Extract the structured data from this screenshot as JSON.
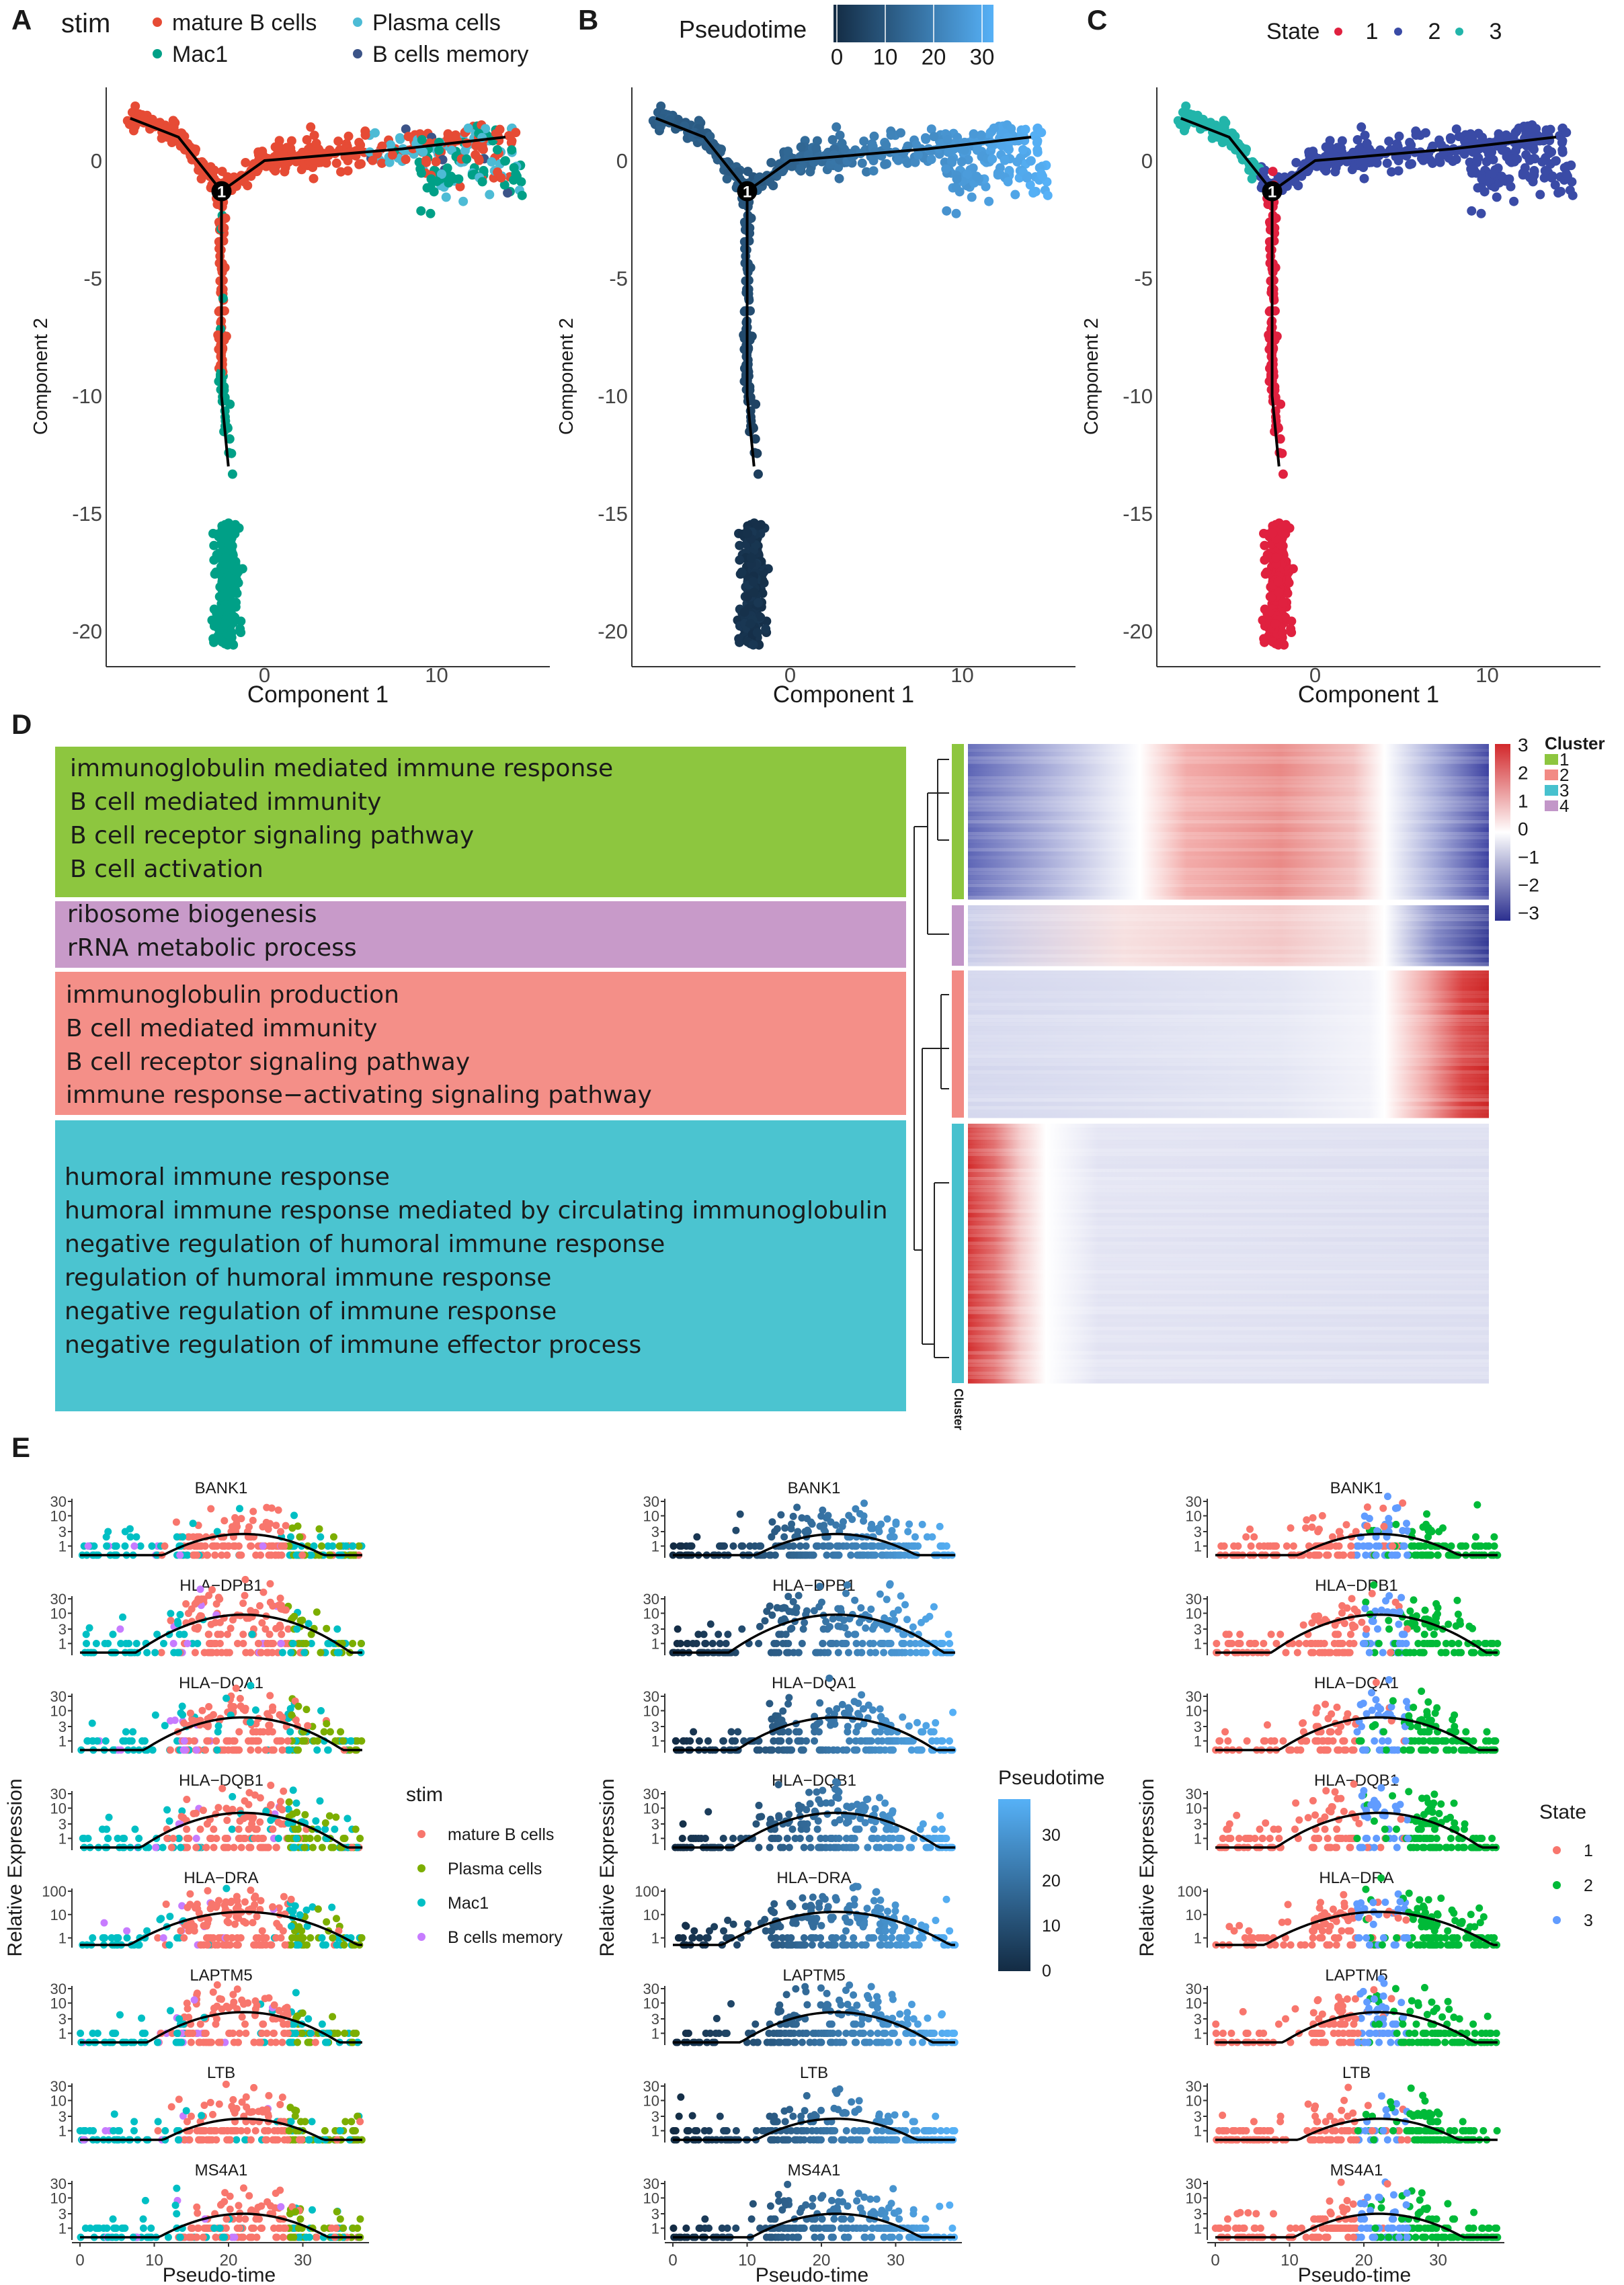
{
  "panel_labels": [
    "A",
    "B",
    "C",
    "D",
    "E"
  ],
  "chart_data": [
    {
      "id": "A",
      "type": "scatter",
      "xlabel": "Component 1",
      "ylabel": "Component 2",
      "xticks": [
        0,
        10
      ],
      "yticks": [
        0,
        -5,
        -10,
        -15,
        -20
      ],
      "xlim": [
        -9.2,
        16.5
      ],
      "ylim": [
        -21.5,
        3.1
      ],
      "branch_point_label": "1",
      "trajectory": [
        [
          -7.8,
          1.8
        ],
        [
          -5,
          1
        ],
        [
          -2.5,
          -1.3
        ],
        [
          0,
          0
        ],
        [
          8,
          0.5
        ],
        [
          14,
          1
        ]
      ],
      "stem": [
        [
          -2.5,
          -1.3
        ],
        [
          -2.5,
          -10
        ],
        [
          -2.1,
          -13
        ]
      ],
      "legend": {
        "title": "stim",
        "entries": [
          {
            "label": "mature B cells",
            "color": "#E64B35"
          },
          {
            "label": "Plasma cells",
            "color": "#4DBBD5"
          },
          {
            "label": "Mac1",
            "color": "#00A087"
          },
          {
            "label": "B cells memory",
            "color": "#3C5488"
          }
        ]
      }
    },
    {
      "id": "B",
      "type": "scatter",
      "xlabel": "Component 1",
      "ylabel": "Component 2",
      "xticks": [
        0,
        10
      ],
      "yticks": [
        0,
        -5,
        -10,
        -15,
        -20
      ],
      "xlim": [
        -9.2,
        16.5
      ],
      "ylim": [
        -21.5,
        3.1
      ],
      "branch_point_label": "1",
      "legend": {
        "title": "Pseudotime",
        "ticks": [
          "0",
          "10",
          "20",
          "30"
        ],
        "range": [
          0,
          32
        ],
        "low": "#132B43",
        "high": "#56B1F7"
      }
    },
    {
      "id": "C",
      "type": "scatter",
      "xlabel": "Component 1",
      "ylabel": "Component 2",
      "xticks": [
        0,
        10
      ],
      "yticks": [
        0,
        -5,
        -10,
        -15,
        -20
      ],
      "xlim": [
        -9.2,
        16.5
      ],
      "ylim": [
        -21.5,
        3.1
      ],
      "branch_point_label": "1",
      "legend": {
        "title": "State",
        "entries": [
          {
            "label": "1",
            "color": "#E0213F"
          },
          {
            "label": "2",
            "color": "#3A4BA6"
          },
          {
            "label": "3",
            "color": "#22B5AA"
          }
        ]
      }
    },
    {
      "id": "D",
      "type": "heatmap",
      "colorbar": {
        "ticks": [
          "3",
          "2",
          "1",
          "0",
          "−1",
          "−2",
          "−3"
        ],
        "range": [
          -3,
          3
        ],
        "low": "#2B2F8F",
        "mid": "#FFFFFF",
        "high": "#D2282B"
      },
      "cluster_legend": {
        "title": "Cluster",
        "entries": [
          {
            "label": "1",
            "color": "#8DC63F"
          },
          {
            "label": "2",
            "color": "#F28A84"
          },
          {
            "label": "3",
            "color": "#47C1CE"
          },
          {
            "label": "4",
            "color": "#C296C8"
          }
        ]
      },
      "cluster_bar_label": "Cluster",
      "modules": [
        {
          "cluster": "1",
          "color": "#8DC63F",
          "terms": [
            "immunoglobulin mediated immune response",
            "B cell mediated immunity",
            "B cell receptor signaling pathway",
            "B cell activation"
          ]
        },
        {
          "cluster": "4",
          "color": "#C89AC9",
          "terms": [
            "ribosome biogenesis",
            "rRNA metabolic process"
          ]
        },
        {
          "cluster": "2",
          "color": "#F48F88",
          "terms": [
            "immunoglobulin production",
            "B cell mediated immunity",
            "B cell receptor signaling pathway",
            "immune response−activating signaling pathway"
          ]
        },
        {
          "cluster": "3",
          "color": "#4BC4D0",
          "terms": [
            "humoral immune response",
            "humoral immune response mediated by circulating immunoglobulin",
            "negative regulation of humoral immune response",
            "regulation of humoral immune response",
            "negative regulation of immune response",
            "negative regulation of immune effector process"
          ]
        }
      ]
    },
    {
      "id": "E",
      "type": "scatter",
      "xlabel": "Pseudo-time",
      "ylabel": "Relative Expression",
      "xticks": [
        "0",
        "10",
        "20",
        "30"
      ],
      "xlim": [
        0,
        38
      ],
      "yticks": [
        "30",
        "10",
        "3",
        "1"
      ],
      "yticks_dra": [
        "100",
        "10",
        "1"
      ],
      "genes": [
        "BANK1",
        "HLA−DPB1",
        "HLA−DQA1",
        "HLA−DQB1",
        "HLA−DRA",
        "LAPTM5",
        "LTB",
        "MS4A1"
      ],
      "gene_peaks": [
        2.5,
        9,
        6,
        7,
        13,
        5,
        2.5,
        3
      ],
      "columns": [
        {
          "legend": {
            "title": "stim",
            "entries": [
              {
                "label": "mature B cells",
                "color": "#F8766D"
              },
              {
                "label": "Plasma cells",
                "color": "#7CAE00"
              },
              {
                "label": "Mac1",
                "color": "#00BFC4"
              },
              {
                "label": "B cells memory",
                "color": "#C77CFF"
              }
            ]
          }
        },
        {
          "legend": {
            "title": "Pseudotime",
            "ticks": [
              "30",
              "20",
              "10",
              "0"
            ],
            "range": [
              0,
              38
            ],
            "low": "#132B43",
            "high": "#56B1F7"
          }
        },
        {
          "legend": {
            "title": "State",
            "entries": [
              {
                "label": "1",
                "color": "#F8766D"
              },
              {
                "label": "2",
                "color": "#00BA38"
              },
              {
                "label": "3",
                "color": "#619CFF"
              }
            ]
          }
        }
      ]
    }
  ]
}
